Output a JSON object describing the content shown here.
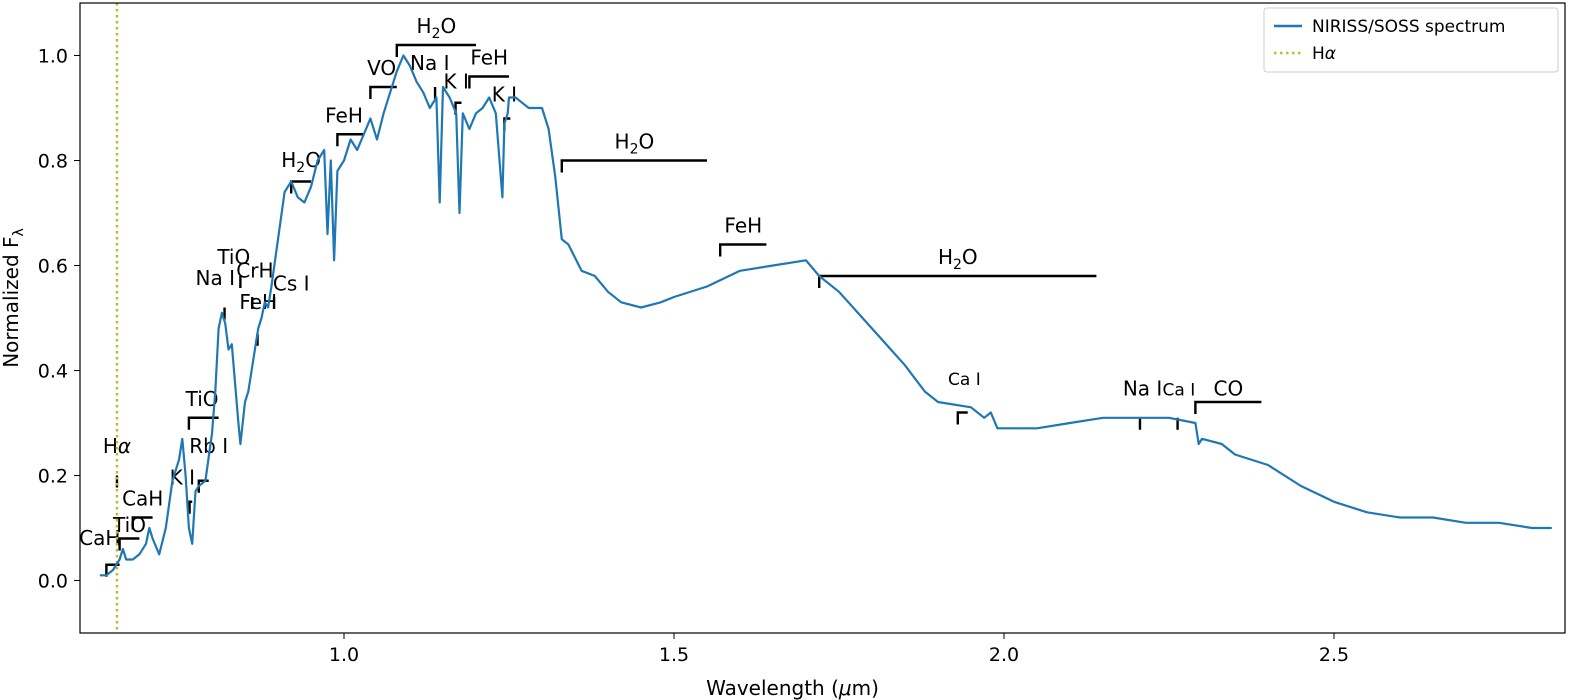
{
  "chart_data": {
    "type": "line",
    "xlabel": "Wavelength (μm)",
    "ylabel": "Normalized F",
    "ylabel_sub": "λ",
    "xlim": [
      0.6,
      2.85
    ],
    "ylim": [
      -0.1,
      1.1
    ],
    "xticks": [
      1.0,
      1.5,
      2.0,
      2.5
    ],
    "xtick_labels": [
      "1.0",
      "1.5",
      "2.0",
      "2.5"
    ],
    "yticks": [
      0.0,
      0.2,
      0.4,
      0.6,
      0.8,
      1.0
    ],
    "ytick_labels": [
      "0.0",
      "0.2",
      "0.4",
      "0.6",
      "0.8",
      "1.0"
    ],
    "legend_position": "top-right",
    "colors": {
      "spectrum": "#1f77b4",
      "halpha": "#bcbd22"
    },
    "series": [
      {
        "name": "NIRISS/SOSS spectrum",
        "x": [
          0.63,
          0.64,
          0.65,
          0.66,
          0.665,
          0.67,
          0.68,
          0.69,
          0.7,
          0.705,
          0.71,
          0.72,
          0.73,
          0.74,
          0.75,
          0.755,
          0.76,
          0.765,
          0.77,
          0.775,
          0.78,
          0.79,
          0.8,
          0.805,
          0.81,
          0.815,
          0.82,
          0.825,
          0.83,
          0.84,
          0.843,
          0.85,
          0.855,
          0.86,
          0.87,
          0.875,
          0.88,
          0.885,
          0.89,
          0.9,
          0.91,
          0.92,
          0.93,
          0.94,
          0.95,
          0.96,
          0.97,
          0.975,
          0.98,
          0.985,
          0.99,
          1.0,
          1.01,
          1.02,
          1.03,
          1.04,
          1.05,
          1.06,
          1.07,
          1.08,
          1.09,
          1.1,
          1.11,
          1.12,
          1.13,
          1.14,
          1.145,
          1.15,
          1.16,
          1.17,
          1.175,
          1.18,
          1.19,
          1.2,
          1.21,
          1.22,
          1.23,
          1.24,
          1.243,
          1.248,
          1.25,
          1.26,
          1.27,
          1.28,
          1.3,
          1.31,
          1.32,
          1.33,
          1.34,
          1.36,
          1.38,
          1.4,
          1.42,
          1.45,
          1.48,
          1.5,
          1.55,
          1.6,
          1.65,
          1.7,
          1.72,
          1.75,
          1.8,
          1.85,
          1.88,
          1.9,
          1.95,
          1.97,
          1.98,
          1.99,
          2.0,
          2.05,
          2.1,
          2.15,
          2.2,
          2.25,
          2.29,
          2.295,
          2.3,
          2.33,
          2.35,
          2.4,
          2.45,
          2.5,
          2.55,
          2.6,
          2.65,
          2.7,
          2.75,
          2.8,
          2.83
        ],
        "values": [
          0.01,
          0.01,
          0.02,
          0.04,
          0.06,
          0.04,
          0.04,
          0.05,
          0.07,
          0.1,
          0.08,
          0.05,
          0.1,
          0.19,
          0.23,
          0.27,
          0.2,
          0.1,
          0.07,
          0.17,
          0.18,
          0.19,
          0.28,
          0.36,
          0.48,
          0.51,
          0.49,
          0.44,
          0.45,
          0.3,
          0.26,
          0.34,
          0.36,
          0.4,
          0.48,
          0.5,
          0.53,
          0.52,
          0.56,
          0.65,
          0.74,
          0.76,
          0.73,
          0.72,
          0.75,
          0.8,
          0.82,
          0.66,
          0.8,
          0.61,
          0.78,
          0.8,
          0.84,
          0.82,
          0.85,
          0.88,
          0.84,
          0.89,
          0.93,
          0.97,
          1.0,
          0.98,
          0.95,
          0.93,
          0.9,
          0.92,
          0.72,
          0.94,
          0.92,
          0.89,
          0.7,
          0.89,
          0.86,
          0.89,
          0.9,
          0.92,
          0.89,
          0.73,
          0.87,
          0.89,
          0.92,
          0.92,
          0.91,
          0.9,
          0.9,
          0.86,
          0.77,
          0.65,
          0.64,
          0.59,
          0.58,
          0.55,
          0.53,
          0.52,
          0.53,
          0.54,
          0.56,
          0.59,
          0.6,
          0.61,
          0.58,
          0.55,
          0.48,
          0.41,
          0.36,
          0.34,
          0.33,
          0.31,
          0.32,
          0.29,
          0.29,
          0.29,
          0.3,
          0.31,
          0.31,
          0.31,
          0.3,
          0.26,
          0.27,
          0.26,
          0.24,
          0.22,
          0.18,
          0.15,
          0.13,
          0.12,
          0.12,
          0.11,
          0.11,
          0.1,
          0.1
        ]
      },
      {
        "name": "Hα",
        "x_line": 0.656,
        "style": "dotted"
      }
    ],
    "annotations": [
      {
        "label": "CaH",
        "x0": 0.64,
        "x1": 0.66,
        "y": 0.03,
        "label_x": 0.63,
        "label_y": 0.06
      },
      {
        "label": "TiO",
        "x0": 0.66,
        "x1": 0.69,
        "y": 0.08,
        "label_x": 0.675,
        "label_y": 0.085
      },
      {
        "label": "CaH",
        "x0": 0.68,
        "x1": 0.71,
        "y": 0.12,
        "label_x": 0.695,
        "label_y": 0.135
      },
      {
        "label": "Hα",
        "x0": 0.656,
        "x1": 0.656,
        "y": 0.2,
        "label_x": 0.656,
        "label_y": 0.235
      },
      {
        "label": "K I",
        "x0": 0.766,
        "x1": 0.77,
        "y": 0.15,
        "label_x": 0.755,
        "label_y": 0.175
      },
      {
        "label": "Rb I",
        "x0": 0.78,
        "x1": 0.795,
        "y": 0.19,
        "label_x": 0.795,
        "label_y": 0.235
      },
      {
        "label": "TiO",
        "x0": 0.765,
        "x1": 0.81,
        "y": 0.31,
        "label_x": 0.785,
        "label_y": 0.325
      },
      {
        "label": "Na I",
        "x0": 0.819,
        "x1": 0.819,
        "y": 0.52,
        "label_x": 0.805,
        "label_y": 0.555
      },
      {
        "label": "TiO",
        "x0": 0.843,
        "x1": 0.843,
        "y": 0.58,
        "label_x": 0.833,
        "label_y": 0.595
      },
      {
        "label": "CrH",
        "x0": 0.861,
        "x1": 0.861,
        "y": 0.54,
        "label_x": 0.865,
        "label_y": 0.57
      },
      {
        "label": "FeH",
        "x0": 0.869,
        "x1": 0.869,
        "y": 0.47,
        "label_x": 0.87,
        "label_y": 0.51
      },
      {
        "label": "Cs I",
        "x0": 0.894,
        "x1": 0.894,
        "y": 0.54,
        "label_x": 0.92,
        "label_y": 0.545
      },
      {
        "label": "H2O",
        "x0": 0.92,
        "x1": 0.95,
        "y": 0.76,
        "label_x": 0.935,
        "label_y": 0.78
      },
      {
        "label": "FeH",
        "x0": 0.99,
        "x1": 1.03,
        "y": 0.85,
        "label_x": 1.0,
        "label_y": 0.865
      },
      {
        "label": "VO",
        "x0": 1.04,
        "x1": 1.08,
        "y": 0.94,
        "label_x": 1.057,
        "label_y": 0.955
      },
      {
        "label": "H2O",
        "x0": 1.08,
        "x1": 1.2,
        "y": 1.02,
        "label_x": 1.14,
        "label_y": 1.035
      },
      {
        "label": "Na I",
        "x0": 1.138,
        "x1": 1.141,
        "y": 0.94,
        "label_x": 1.13,
        "label_y": 0.965
      },
      {
        "label": "K I",
        "x0": 1.169,
        "x1": 1.178,
        "y": 0.91,
        "label_x": 1.17,
        "label_y": 0.93
      },
      {
        "label": "FeH",
        "x0": 1.19,
        "x1": 1.25,
        "y": 0.96,
        "label_x": 1.22,
        "label_y": 0.975
      },
      {
        "label": "K I",
        "x0": 1.243,
        "x1": 1.252,
        "y": 0.88,
        "label_x": 1.243,
        "label_y": 0.905
      },
      {
        "label": "H2O",
        "x0": 1.33,
        "x1": 1.55,
        "y": 0.8,
        "label_x": 1.44,
        "label_y": 0.815
      },
      {
        "label": "FeH",
        "x0": 1.57,
        "x1": 1.64,
        "y": 0.64,
        "label_x": 1.605,
        "label_y": 0.655
      },
      {
        "label": "H2O",
        "x0": 1.72,
        "x1": 2.14,
        "y": 0.58,
        "label_x": 1.93,
        "label_y": 0.595
      },
      {
        "label": "Ca I",
        "x0": 1.93,
        "x1": 1.945,
        "y": 0.32,
        "label_x": 1.94,
        "label_y": 0.365
      },
      {
        "label": "Na I",
        "x0": 2.206,
        "x1": 2.206,
        "y": 0.31,
        "label_x": 2.21,
        "label_y": 0.345
      },
      {
        "label": "Ca I",
        "x0": 2.263,
        "x1": 2.263,
        "y": 0.31,
        "label_x": 2.265,
        "label_y": 0.345
      },
      {
        "label": "CO",
        "x0": 2.29,
        "x1": 2.39,
        "y": 0.34,
        "label_x": 2.34,
        "label_y": 0.345
      }
    ]
  }
}
